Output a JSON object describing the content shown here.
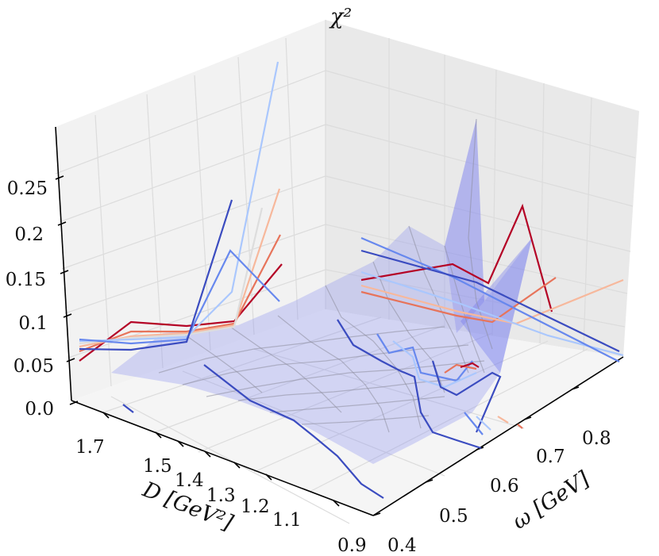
{
  "chart_data": {
    "type": "3d-surface-with-lines",
    "zlabel": "χ²",
    "ylabel": "D [GeV²]",
    "xlabel": "ω [GeV]",
    "zlim": [
      0.0,
      0.3
    ],
    "grid": true,
    "z_ticks": [
      "0.0",
      "0.05",
      "0.1",
      "0.15",
      "0.2",
      "0.25"
    ],
    "d_ticks": [
      "1.7",
      "1.5",
      "1.4",
      "1.3",
      "1.2",
      "1.1",
      "0.9"
    ],
    "w_ticks": [
      "0.4",
      "0.5",
      "0.6",
      "0.7",
      "0.8"
    ],
    "surface_color": "#8a8ef0",
    "line_colors": [
      "#b40426",
      "#e7745b",
      "#f7b89c",
      "#dddddd",
      "#aac7fd",
      "#6788ee",
      "#3b4cc0"
    ]
  }
}
